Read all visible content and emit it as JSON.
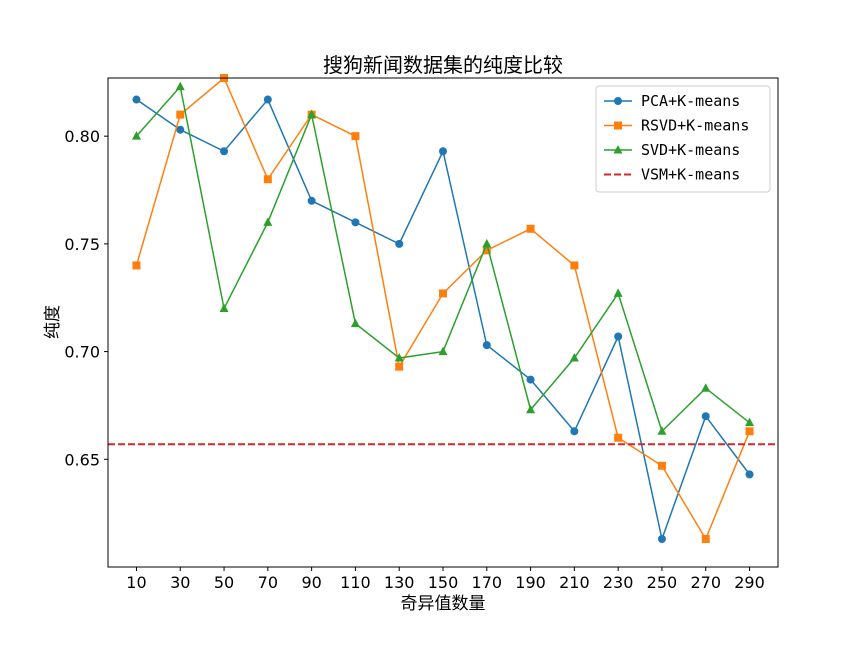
{
  "chart_data": {
    "type": "line",
    "title": "搜狗新闻数据集的纯度比较",
    "xlabel": "奇异值数量",
    "ylabel": "纯度",
    "x": [
      10,
      30,
      50,
      70,
      90,
      110,
      130,
      150,
      170,
      190,
      210,
      230,
      250,
      270,
      290
    ],
    "xlim": [
      -3,
      303
    ],
    "ylim": [
      0.6,
      0.827
    ],
    "yticks": [
      0.65,
      0.7,
      0.75,
      0.8
    ],
    "ytick_labels": [
      "0.65",
      "0.70",
      "0.75",
      "0.80"
    ],
    "grid": false,
    "legend_position": "top-right",
    "series": [
      {
        "name": "PCA+K-means",
        "color": "#1f77b4",
        "marker": "circle",
        "values": [
          0.817,
          0.803,
          0.793,
          0.817,
          0.77,
          0.76,
          0.75,
          0.793,
          0.703,
          0.687,
          0.663,
          0.707,
          0.613,
          0.67,
          0.643
        ]
      },
      {
        "name": "RSVD+K-means",
        "color": "#ff7f0e",
        "marker": "square",
        "values": [
          0.74,
          0.81,
          0.827,
          0.78,
          0.81,
          0.8,
          0.693,
          0.727,
          0.747,
          0.757,
          0.74,
          0.66,
          0.647,
          0.613,
          0.663
        ]
      },
      {
        "name": "SVD+K-means",
        "color": "#2ca02c",
        "marker": "triangle",
        "values": [
          0.8,
          0.823,
          0.72,
          0.76,
          0.81,
          0.713,
          0.697,
          0.7,
          0.75,
          0.673,
          0.697,
          0.727,
          0.663,
          0.683,
          0.667
        ]
      },
      {
        "name": "VSM+K-means",
        "color": "#d62728",
        "marker": "none",
        "dashed": true,
        "constant": 0.657
      }
    ]
  }
}
